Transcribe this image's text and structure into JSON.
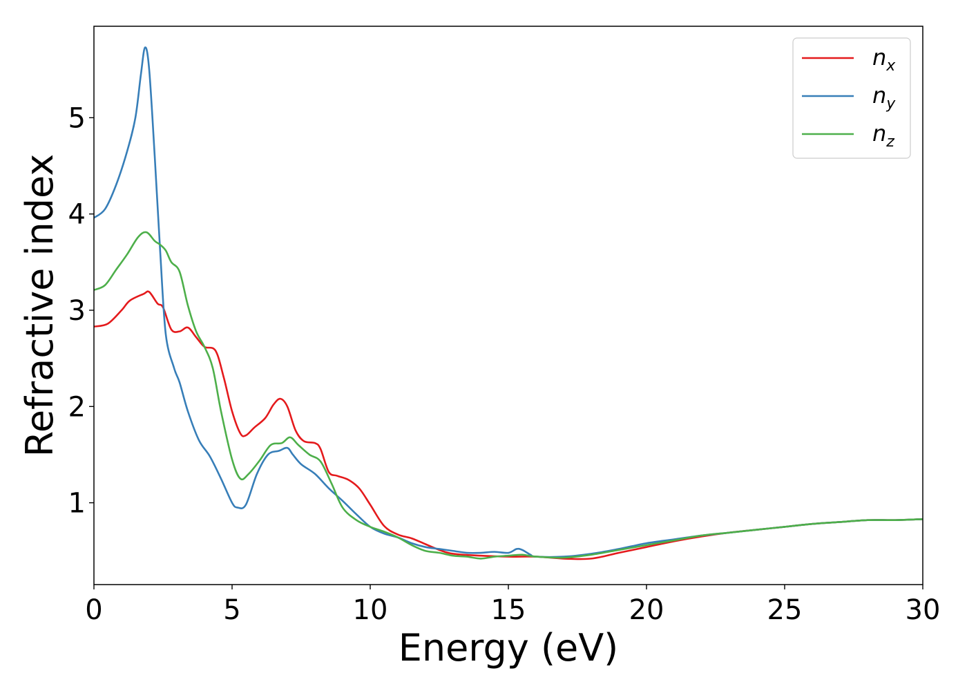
{
  "chart_data": {
    "type": "line",
    "xlabel": "Energy (eV)",
    "ylabel": "Refractive index",
    "xlim": [
      0,
      30
    ],
    "ylim": [
      0.15,
      5.95
    ],
    "xticks": [
      0,
      5,
      10,
      15,
      20,
      25,
      30
    ],
    "yticks": [
      1,
      2,
      3,
      4,
      5
    ],
    "grid": false,
    "legend_position": "top-right",
    "series": [
      {
        "name": "n",
        "subscript": "x",
        "color": "#e41a1c",
        "points": [
          [
            0,
            2.83
          ],
          [
            0.5,
            2.86
          ],
          [
            1,
            3.0
          ],
          [
            1.3,
            3.1
          ],
          [
            1.8,
            3.17
          ],
          [
            2,
            3.19
          ],
          [
            2.3,
            3.07
          ],
          [
            2.5,
            3.03
          ],
          [
            2.8,
            2.8
          ],
          [
            3.1,
            2.78
          ],
          [
            3.4,
            2.82
          ],
          [
            3.7,
            2.72
          ],
          [
            4,
            2.62
          ],
          [
            4.4,
            2.58
          ],
          [
            4.7,
            2.3
          ],
          [
            5,
            1.95
          ],
          [
            5.3,
            1.72
          ],
          [
            5.5,
            1.7
          ],
          [
            5.8,
            1.78
          ],
          [
            6.2,
            1.88
          ],
          [
            6.5,
            2.02
          ],
          [
            6.75,
            2.08
          ],
          [
            7,
            2.0
          ],
          [
            7.3,
            1.75
          ],
          [
            7.6,
            1.64
          ],
          [
            8,
            1.62
          ],
          [
            8.2,
            1.56
          ],
          [
            8.5,
            1.32
          ],
          [
            8.8,
            1.28
          ],
          [
            9.2,
            1.24
          ],
          [
            9.6,
            1.15
          ],
          [
            10,
            0.98
          ],
          [
            10.5,
            0.76
          ],
          [
            11,
            0.67
          ],
          [
            11.5,
            0.63
          ],
          [
            12,
            0.57
          ],
          [
            12.5,
            0.51
          ],
          [
            13,
            0.47
          ],
          [
            14,
            0.45
          ],
          [
            15,
            0.44
          ],
          [
            16,
            0.44
          ],
          [
            17,
            0.42
          ],
          [
            18,
            0.42
          ],
          [
            19,
            0.48
          ],
          [
            20,
            0.54
          ],
          [
            21,
            0.6
          ],
          [
            22,
            0.65
          ],
          [
            23,
            0.69
          ],
          [
            24,
            0.72
          ],
          [
            25,
            0.75
          ],
          [
            26,
            0.78
          ],
          [
            27,
            0.8
          ],
          [
            28,
            0.82
          ],
          [
            29,
            0.82
          ],
          [
            30,
            0.83
          ]
        ]
      },
      {
        "name": "n",
        "subscript": "y",
        "color": "#377eb8",
        "points": [
          [
            0,
            3.96
          ],
          [
            0.4,
            4.05
          ],
          [
            0.8,
            4.3
          ],
          [
            1.2,
            4.65
          ],
          [
            1.5,
            5.0
          ],
          [
            1.7,
            5.45
          ],
          [
            1.85,
            5.73
          ],
          [
            2,
            5.5
          ],
          [
            2.2,
            4.6
          ],
          [
            2.4,
            3.6
          ],
          [
            2.6,
            2.75
          ],
          [
            2.9,
            2.4
          ],
          [
            3.1,
            2.25
          ],
          [
            3.4,
            1.95
          ],
          [
            3.8,
            1.65
          ],
          [
            4.2,
            1.48
          ],
          [
            4.6,
            1.25
          ],
          [
            5,
            1.0
          ],
          [
            5.2,
            0.95
          ],
          [
            5.5,
            0.98
          ],
          [
            5.9,
            1.3
          ],
          [
            6.3,
            1.5
          ],
          [
            6.7,
            1.54
          ],
          [
            7,
            1.57
          ],
          [
            7.2,
            1.5
          ],
          [
            7.5,
            1.4
          ],
          [
            8,
            1.3
          ],
          [
            8.5,
            1.15
          ],
          [
            9,
            1.02
          ],
          [
            9.5,
            0.88
          ],
          [
            10,
            0.75
          ],
          [
            10.5,
            0.68
          ],
          [
            11,
            0.64
          ],
          [
            11.5,
            0.58
          ],
          [
            12,
            0.54
          ],
          [
            12.5,
            0.52
          ],
          [
            13,
            0.5
          ],
          [
            13.5,
            0.48
          ],
          [
            14,
            0.48
          ],
          [
            14.5,
            0.49
          ],
          [
            15,
            0.48
          ],
          [
            15.3,
            0.52
          ],
          [
            15.5,
            0.51
          ],
          [
            15.8,
            0.46
          ],
          [
            16,
            0.44
          ],
          [
            17,
            0.44
          ],
          [
            18,
            0.47
          ],
          [
            19,
            0.52
          ],
          [
            20,
            0.58
          ],
          [
            21,
            0.62
          ],
          [
            22,
            0.66
          ],
          [
            23,
            0.69
          ],
          [
            24,
            0.72
          ],
          [
            25,
            0.75
          ],
          [
            26,
            0.78
          ],
          [
            27,
            0.8
          ],
          [
            28,
            0.82
          ],
          [
            29,
            0.82
          ],
          [
            30,
            0.83
          ]
        ]
      },
      {
        "name": "n",
        "subscript": "z",
        "color": "#4daf4a",
        "points": [
          [
            0,
            3.21
          ],
          [
            0.4,
            3.26
          ],
          [
            0.8,
            3.42
          ],
          [
            1.2,
            3.58
          ],
          [
            1.6,
            3.76
          ],
          [
            1.9,
            3.81
          ],
          [
            2.2,
            3.72
          ],
          [
            2.4,
            3.68
          ],
          [
            2.6,
            3.62
          ],
          [
            2.8,
            3.5
          ],
          [
            3.1,
            3.4
          ],
          [
            3.4,
            3.05
          ],
          [
            3.7,
            2.78
          ],
          [
            4,
            2.62
          ],
          [
            4.3,
            2.4
          ],
          [
            4.6,
            1.95
          ],
          [
            5,
            1.45
          ],
          [
            5.3,
            1.25
          ],
          [
            5.6,
            1.3
          ],
          [
            6,
            1.44
          ],
          [
            6.4,
            1.6
          ],
          [
            6.8,
            1.62
          ],
          [
            7.1,
            1.68
          ],
          [
            7.4,
            1.6
          ],
          [
            7.8,
            1.5
          ],
          [
            8.2,
            1.43
          ],
          [
            8.6,
            1.2
          ],
          [
            9,
            0.95
          ],
          [
            9.5,
            0.82
          ],
          [
            10,
            0.75
          ],
          [
            10.5,
            0.7
          ],
          [
            11,
            0.64
          ],
          [
            11.5,
            0.56
          ],
          [
            12,
            0.5
          ],
          [
            12.5,
            0.48
          ],
          [
            13,
            0.45
          ],
          [
            13.5,
            0.44
          ],
          [
            14,
            0.42
          ],
          [
            14.5,
            0.44
          ],
          [
            15,
            0.45
          ],
          [
            15.5,
            0.46
          ],
          [
            16,
            0.44
          ],
          [
            17,
            0.43
          ],
          [
            18,
            0.46
          ],
          [
            19,
            0.51
          ],
          [
            20,
            0.56
          ],
          [
            21,
            0.61
          ],
          [
            22,
            0.66
          ],
          [
            23,
            0.69
          ],
          [
            24,
            0.72
          ],
          [
            25,
            0.75
          ],
          [
            26,
            0.78
          ],
          [
            27,
            0.8
          ],
          [
            28,
            0.82
          ],
          [
            29,
            0.82
          ],
          [
            30,
            0.83
          ]
        ]
      }
    ]
  }
}
